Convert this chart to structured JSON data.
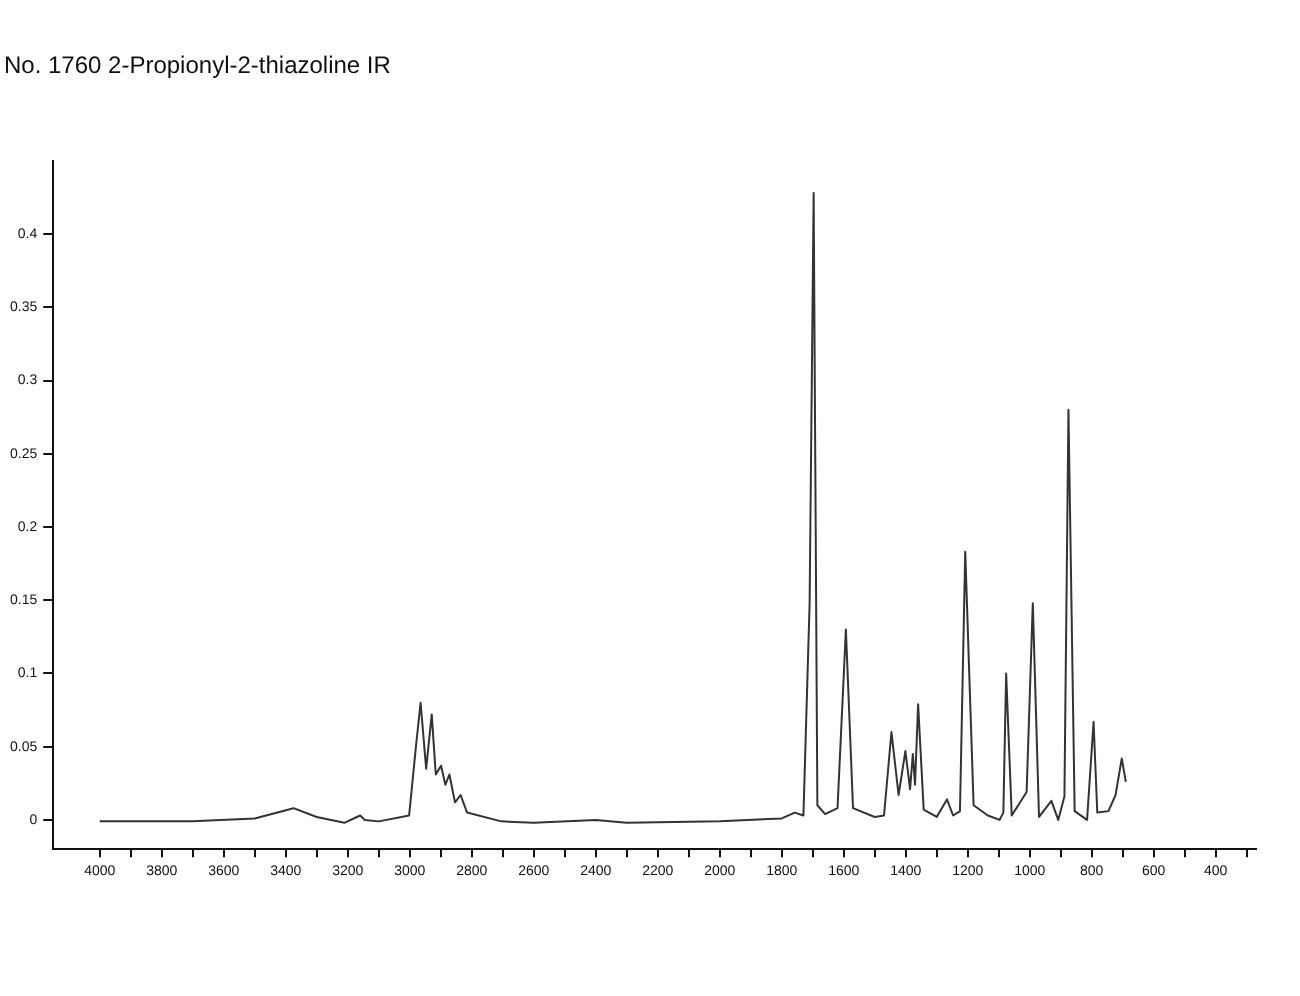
{
  "chart_data": {
    "type": "line",
    "title": "No. 1760 2-Propionyl-2-thiazoline IR",
    "x": [
      4000,
      3700,
      3500,
      3375,
      3300,
      3211,
      3160,
      3145,
      3100,
      3002,
      2980,
      2965,
      2947,
      2929,
      2916,
      2899,
      2885,
      2872,
      2854,
      2836,
      2815,
      2705,
      2600,
      2400,
      2300,
      2000,
      1800,
      1758,
      1730,
      1710,
      1697,
      1685,
      1660,
      1620,
      1593,
      1570,
      1500,
      1470,
      1446,
      1423,
      1401,
      1386,
      1377,
      1370,
      1360,
      1342,
      1300,
      1267,
      1247,
      1225,
      1208,
      1181,
      1135,
      1097,
      1085,
      1076,
      1058,
      1010,
      990,
      970,
      930,
      908,
      888,
      875,
      855,
      815,
      794,
      782,
      746,
      723,
      703,
      690
    ],
    "series": [
      {
        "color": "#333333",
        "values": [
          -0.001,
          -0.001,
          0.001,
          0.008,
          0.002,
          -0.002,
          0.003,
          0.0,
          -0.001,
          0.003,
          0.05,
          0.08,
          0.035,
          0.072,
          0.031,
          0.037,
          0.024,
          0.031,
          0.012,
          0.017,
          0.005,
          -0.001,
          -0.002,
          0.0,
          -0.002,
          -0.001,
          0.001,
          0.005,
          0.003,
          0.148,
          0.428,
          0.01,
          0.004,
          0.008,
          0.13,
          0.008,
          0.002,
          0.003,
          0.06,
          0.017,
          0.047,
          0.021,
          0.045,
          0.024,
          0.079,
          0.007,
          0.002,
          0.014,
          0.003,
          0.006,
          0.183,
          0.01,
          0.003,
          0.0,
          0.005,
          0.1,
          0.003,
          0.019,
          0.148,
          0.002,
          0.013,
          0.0,
          0.016,
          0.28,
          0.006,
          0.0,
          0.067,
          0.005,
          0.006,
          0.017,
          0.042,
          0.026
        ]
      }
    ],
    "xlim": [
      4150,
      270
    ],
    "xticks": [
      4000,
      {
        "value": 3900,
        "label": null
      },
      3800,
      {
        "value": 3700,
        "label": null
      },
      3600,
      {
        "value": 3500,
        "label": null
      },
      3400,
      {
        "value": 3300,
        "label": null
      },
      3200,
      {
        "value": 3100,
        "label": null
      },
      3000,
      {
        "value": 2900,
        "label": null
      },
      2800,
      {
        "value": 2700,
        "label": null
      },
      2600,
      {
        "value": 2500,
        "label": null
      },
      2400,
      {
        "value": 2300,
        "label": null
      },
      2200,
      {
        "value": 2100,
        "label": null
      },
      2000,
      {
        "value": 1900,
        "label": null
      },
      1800,
      {
        "value": 1700,
        "label": null
      },
      1600,
      {
        "value": 1500,
        "label": null
      },
      1400,
      {
        "value": 1300,
        "label": null
      },
      1200,
      {
        "value": 1100,
        "label": null
      },
      1000,
      {
        "value": 900,
        "label": null
      },
      800,
      {
        "value": 700,
        "label": null
      },
      600,
      {
        "value": 500,
        "label": null
      },
      400,
      {
        "value": 300,
        "label": null
      }
    ],
    "ylim": [
      -0.02,
      0.45
    ],
    "yticks": [
      0,
      0.05,
      0.1,
      0.15,
      0.2,
      0.25,
      0.3,
      0.35,
      0.4
    ],
    "marker": "none",
    "line_style": "solid",
    "legend": false
  }
}
